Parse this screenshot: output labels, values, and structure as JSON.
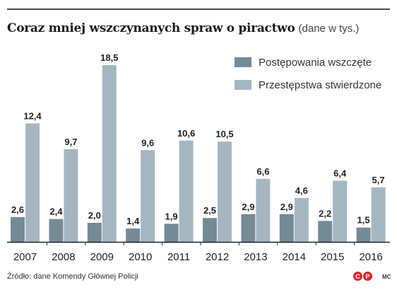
{
  "chart_data": {
    "type": "bar",
    "title": "Coraz mniej wszczynanych spraw o piractwo",
    "subtitle": "(dane w tys.)",
    "categories": [
      "2007",
      "2008",
      "2009",
      "2010",
      "2011",
      "2012",
      "2013",
      "2014",
      "2015",
      "2016"
    ],
    "series": [
      {
        "name": "Postępowania wszczęte",
        "color": "#768a96",
        "values": [
          2.6,
          2.4,
          2.0,
          1.4,
          1.9,
          2.5,
          2.9,
          2.9,
          2.2,
          1.5
        ],
        "labels": [
          "2,6",
          "2,4",
          "2,0",
          "1,4",
          "1,9",
          "2,5",
          "2,9",
          "2,9",
          "2,2",
          "1,5"
        ]
      },
      {
        "name": "Przestępstwa stwierdzone",
        "color": "#a6b6c0",
        "values": [
          12.4,
          9.7,
          18.5,
          9.6,
          10.6,
          10.5,
          6.6,
          4.6,
          6.4,
          5.7
        ],
        "labels": [
          "12,4",
          "9,7",
          "18,5",
          "9,6",
          "10,6",
          "10,5",
          "6,6",
          "4,6",
          "6,4",
          "5,7"
        ]
      }
    ],
    "ylim": [
      0,
      18.5
    ],
    "grid": false,
    "legend": "top-right"
  },
  "footer": {
    "source": "Źródło: dane Komendy Głównej Policji",
    "logo_letters": [
      "C",
      "P"
    ],
    "initials": "MC"
  }
}
